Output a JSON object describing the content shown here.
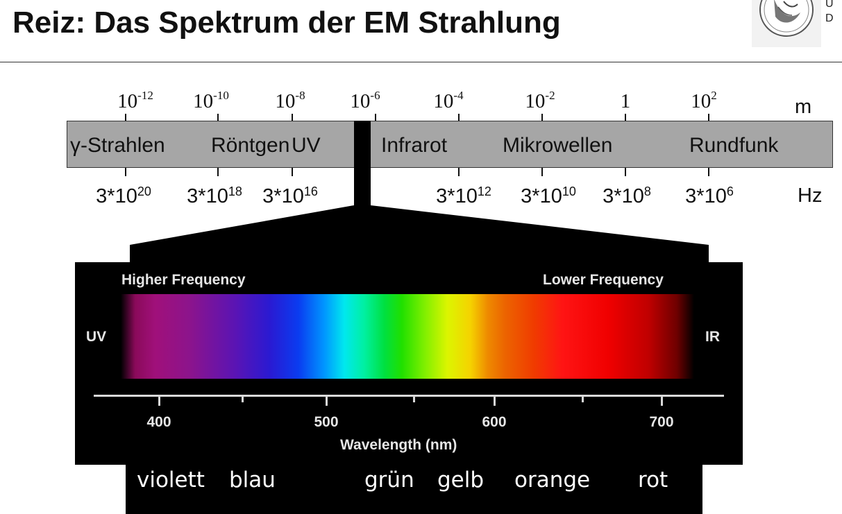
{
  "slide": {
    "title": "Reiz: Das Spektrum der EM Strahlung"
  },
  "logo": {
    "line1": "U",
    "line2": "D"
  },
  "em_scale": {
    "wavelength_unit": "m",
    "frequency_unit": "Hz",
    "wavelength_labels": [
      {
        "base": "10",
        "exp": "-12"
      },
      {
        "base": "10",
        "exp": "-10"
      },
      {
        "base": "10",
        "exp": "-8"
      },
      {
        "base": "10",
        "exp": "-6"
      },
      {
        "base": "10",
        "exp": "-4"
      },
      {
        "base": "10",
        "exp": "-2"
      },
      {
        "base": "1",
        "exp": ""
      },
      {
        "base": "10",
        "exp": "2"
      }
    ],
    "bands": [
      "γ-Strahlen",
      "Röntgen",
      "UV",
      "Infrarot",
      "Mikrowellen",
      "Rundfunk"
    ],
    "frequency_labels": [
      {
        "base": "3*10",
        "exp": "20"
      },
      {
        "base": "3*10",
        "exp": "18"
      },
      {
        "base": "3*10",
        "exp": "16"
      },
      {
        "base": "3*10",
        "exp": "12"
      },
      {
        "base": "3*10",
        "exp": "10"
      },
      {
        "base": "3*10",
        "exp": "8"
      },
      {
        "base": "3*10",
        "exp": "6"
      }
    ],
    "visible_band_color": "#000000",
    "bar_color": "#a6a6a6"
  },
  "visible_spectrum": {
    "higher_label": "Higher Frequency",
    "lower_label": "Lower Frequency",
    "left_label": "UV",
    "right_label": "IR",
    "axis_title": "Wavelength (nm)",
    "axis_ticks": [
      "400",
      "500",
      "600",
      "700"
    ],
    "color_names": [
      "violett",
      "blau",
      "grün",
      "gelb",
      "orange",
      "rot"
    ]
  }
}
